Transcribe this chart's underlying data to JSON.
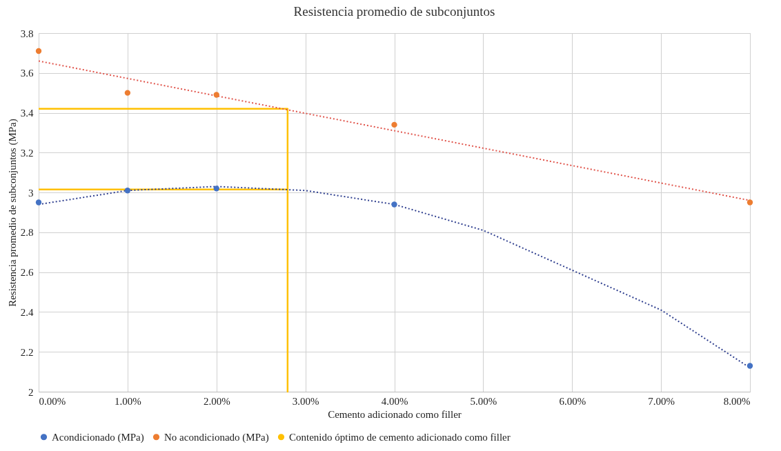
{
  "chart_data": {
    "type": "scatter",
    "title": "Resistencia promedio de subconjuntos",
    "xlabel": "Cemento adicionado como filler",
    "ylabel": "Resistencia promedio de subconjuntos (MPa)",
    "x": [
      0,
      1,
      2,
      4,
      8
    ],
    "series": [
      {
        "name": "Acondicionado (MPa)",
        "color": "#4472c4",
        "values": [
          2.95,
          3.01,
          3.02,
          2.94,
          2.13
        ]
      },
      {
        "name": "No acondicionado (MPa)",
        "color": "#ed7d31",
        "values": [
          3.71,
          3.5,
          3.49,
          3.34,
          2.95
        ]
      },
      {
        "name": "Contenido óptimo de cemento adicionado como filler",
        "color": "#ffc000",
        "type": "line",
        "line_style": "solid",
        "marker": "none",
        "x": [
          0,
          2.8,
          2.8,
          2.8,
          0
        ],
        "values": [
          3.42,
          3.42,
          2,
          3.015,
          3.015
        ]
      },
      {
        "type": "line",
        "color": "#2f3f8f",
        "line_style": "dotted",
        "marker": "none",
        "x": [
          0,
          1,
          2,
          3,
          4,
          5,
          6,
          7,
          8
        ],
        "values": [
          2.94,
          3.01,
          3.03,
          3.01,
          2.94,
          2.81,
          2.61,
          2.41,
          2.12
        ]
      },
      {
        "type": "line",
        "color": "#e0534a",
        "line_style": "dotted",
        "marker": "none",
        "x": [
          0,
          8
        ],
        "values": [
          3.66,
          2.96
        ]
      }
    ],
    "xlim": [
      0,
      8
    ],
    "xticks": [
      {
        "value": 0,
        "label": "0.00%"
      },
      {
        "value": 1,
        "label": "1.00%"
      },
      {
        "value": 2,
        "label": "2.00%"
      },
      {
        "value": 3,
        "label": "3.00%"
      },
      {
        "value": 4,
        "label": "4.00%"
      },
      {
        "value": 5,
        "label": "5.00%"
      },
      {
        "value": 6,
        "label": "6.00%"
      },
      {
        "value": 7,
        "label": "7.00%"
      },
      {
        "value": 8,
        "label": "8.00%"
      }
    ],
    "ylim": [
      2,
      3.8
    ],
    "yticks": [
      2,
      2.2,
      2.4,
      2.6,
      2.8,
      3,
      3.2,
      3.4,
      3.6,
      3.8
    ],
    "grid": true,
    "legend": "bottom",
    "marker": "circle"
  }
}
